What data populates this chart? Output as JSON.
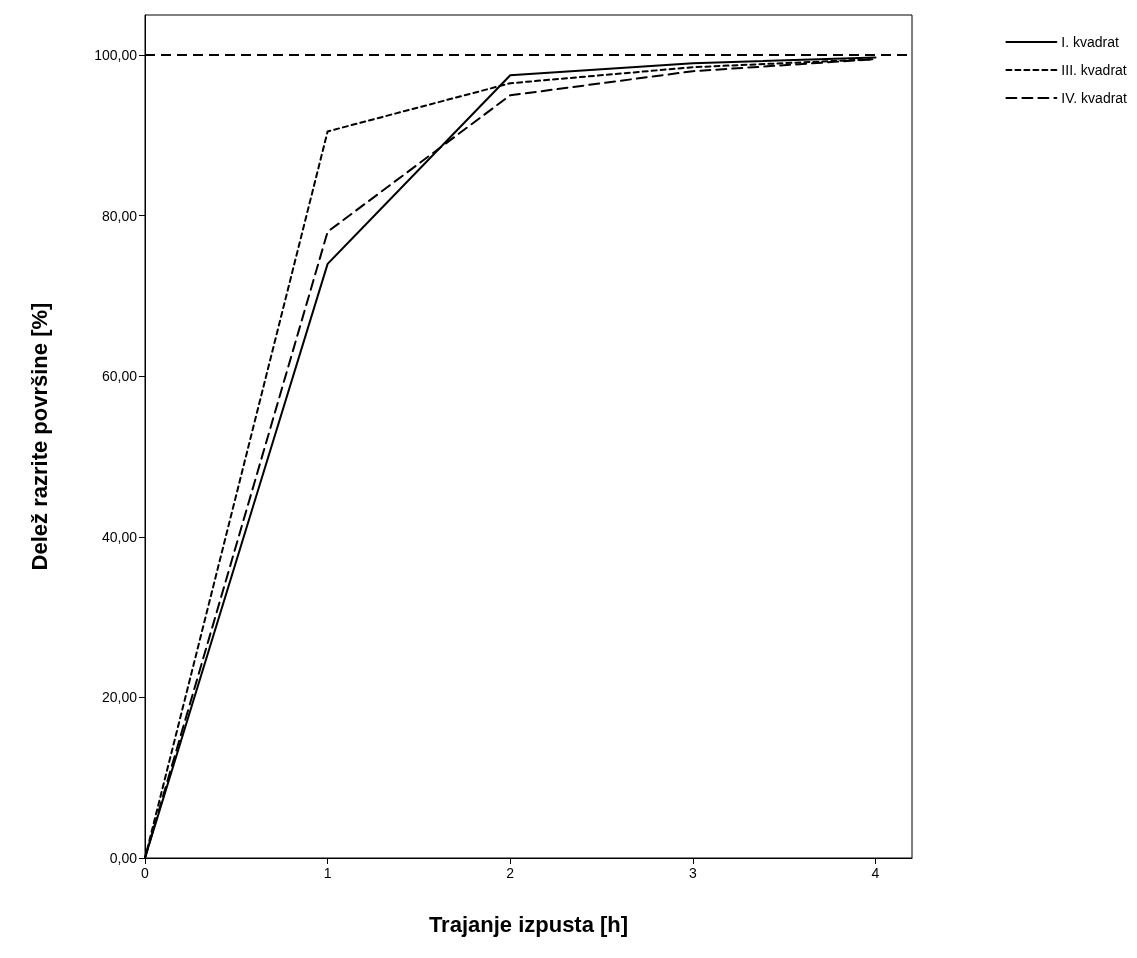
{
  "chart_data": {
    "type": "line",
    "xlabel": "Trajanje izpusta [h]",
    "ylabel": "Delež razrite površine [%]",
    "x": [
      0,
      1,
      2,
      3,
      4
    ],
    "series": [
      {
        "name": "I. kvadrat",
        "color": "#000000",
        "line_style": "solid",
        "values": [
          0,
          74,
          97.5,
          99,
          99.7
        ]
      },
      {
        "name": "III. kvadrat",
        "color": "#000000",
        "line_style": "dotted",
        "values": [
          0,
          90.5,
          96.5,
          98.5,
          99.5
        ]
      },
      {
        "name": "IV. kvadrat",
        "color": "#000000",
        "line_style": "dashed",
        "values": [
          0,
          78,
          95,
          98,
          99.5
        ]
      }
    ],
    "ref_lines": [
      {
        "axis": "y",
        "value": 100,
        "label": null,
        "color": "#000000",
        "line_style": "dashed"
      }
    ],
    "xlim": [
      0,
      4.2
    ],
    "xticks": [
      0,
      1,
      2,
      3,
      4
    ],
    "ylim": [
      0,
      105
    ],
    "yticks": [
      {
        "value": 0,
        "label": "0,00"
      },
      {
        "value": 20,
        "label": "20,00"
      },
      {
        "value": 40,
        "label": "40,00"
      },
      {
        "value": 60,
        "label": "60,00"
      },
      {
        "value": 80,
        "label": "80,00"
      },
      {
        "value": 100,
        "label": "100,00"
      }
    ],
    "grid": false,
    "legend": "top right",
    "marker": "none"
  }
}
